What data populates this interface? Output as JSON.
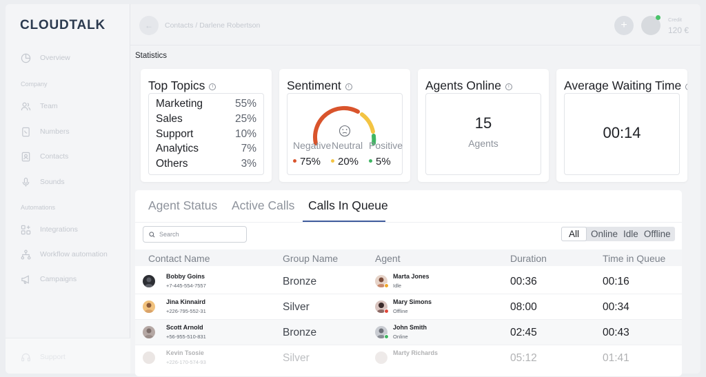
{
  "app": {
    "logo": "CLOUDTALK"
  },
  "sidebar": {
    "items": [
      {
        "label": "Overview",
        "icon": "pie-chart-icon"
      },
      {
        "label": "Team",
        "icon": "users-icon"
      },
      {
        "label": "Numbers",
        "icon": "phone-book-icon"
      },
      {
        "label": "Contacts",
        "icon": "contact-card-icon"
      },
      {
        "label": "Sounds",
        "icon": "microphone-icon"
      },
      {
        "label": "Integrations",
        "icon": "grid-plus-icon"
      },
      {
        "label": "Workflow automation",
        "icon": "workflow-icon"
      },
      {
        "label": "Campaigns",
        "icon": "megaphone-icon"
      }
    ],
    "sections": {
      "company": "Company",
      "automations": "Automations"
    },
    "support_label": "Support"
  },
  "header": {
    "breadcrumb": "Contacts  /  Darlene Robertson",
    "credit_label": "Credit",
    "credit_value": "120 €",
    "back_icon": "arrow-left-icon",
    "add_icon": "plus-icon"
  },
  "stats": {
    "title": "Statistics",
    "top_topics": {
      "title": "Top Topics",
      "items": [
        {
          "name": "Marketing",
          "pct": "55%"
        },
        {
          "name": "Sales",
          "pct": "25%"
        },
        {
          "name": "Support",
          "pct": "10%"
        },
        {
          "name": "Analytics",
          "pct": "7%"
        },
        {
          "name": "Others",
          "pct": "3%"
        }
      ]
    },
    "sentiment": {
      "title": "Sentiment",
      "negative_label": "Negative",
      "neutral_label": "Neutral",
      "positive_label": "Positive",
      "negative": "75%",
      "neutral": "20%",
      "positive": "5%",
      "colors": {
        "negative": "#d9542c",
        "neutral": "#f3c443",
        "positive": "#3fb562"
      }
    },
    "agents_online": {
      "title": "Agents Online",
      "value": "15",
      "unit": "Agents"
    },
    "waiting": {
      "title": "Average Waiting Time",
      "value": "00:14"
    }
  },
  "tabs": [
    "Agent Status",
    "Active Calls",
    "Calls In Queue"
  ],
  "search": {
    "placeholder": "Search"
  },
  "filters": [
    "All",
    "Online",
    "Idle",
    "Offline"
  ],
  "table": {
    "headers": [
      "Contact Name",
      "Group Name",
      "Agent",
      "Duration",
      "Time in Queue"
    ],
    "rows": [
      {
        "name": "Bobby Goins",
        "phone": "+7-445-554-7557",
        "group": "Bronze",
        "agent": "Marta Jones",
        "agent_status": "Idle",
        "duration": "00:36",
        "queue": "00:16"
      },
      {
        "name": "Jina Kinnaird",
        "phone": "+226-795-552-31",
        "group": "Silver",
        "agent": "Mary Simons",
        "agent_status": "Offline",
        "duration": "08:00",
        "queue": "00:34"
      },
      {
        "name": "Scott Arnold",
        "phone": "+56-955-510-831",
        "group": "Bronze",
        "agent": "John Smith",
        "agent_status": "Online",
        "duration": "02:45",
        "queue": "00:43"
      },
      {
        "name": "Kevin Tsosie",
        "phone": "+226-170-574-93",
        "group": "Silver",
        "agent": "Marty Richards",
        "agent_status": "",
        "duration": "05:12",
        "queue": "01:41"
      }
    ]
  },
  "status_colors": {
    "Idle": "#f0a629",
    "Offline": "#e0473a",
    "Online": "#3fb562"
  }
}
